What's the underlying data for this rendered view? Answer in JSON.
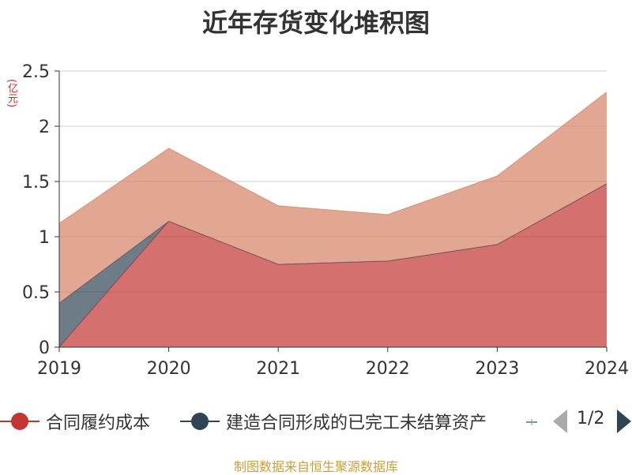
{
  "chart_data": {
    "type": "area",
    "stacked": true,
    "title": "近年存货变化堆积图",
    "y_unit": "(亿元)",
    "categories": [
      "2019",
      "2020",
      "2021",
      "2022",
      "2023",
      "2024"
    ],
    "ylim": [
      0,
      2.5
    ],
    "yticks": [
      "0",
      "0.5",
      "1",
      "1.5",
      "2",
      "2.5"
    ],
    "grid": true,
    "legend_position": "bottom",
    "series": [
      {
        "name": "合同履约成本",
        "color": "#c23531",
        "values": [
          0,
          1.14,
          0.75,
          0.78,
          0.93,
          1.48
        ]
      },
      {
        "name": "建造合同形成的已完工未结算资产",
        "color": "#2f4554",
        "values": [
          0.4,
          0,
          0,
          0,
          0,
          0
        ]
      },
      {
        "name": "",
        "color": "#d48265",
        "values": [
          0.72,
          0.66,
          0.53,
          0.42,
          0.62,
          0.83
        ]
      }
    ]
  },
  "legend": {
    "page_indicator": "1/2"
  },
  "source": "制图数据来自恒生聚源数据库"
}
